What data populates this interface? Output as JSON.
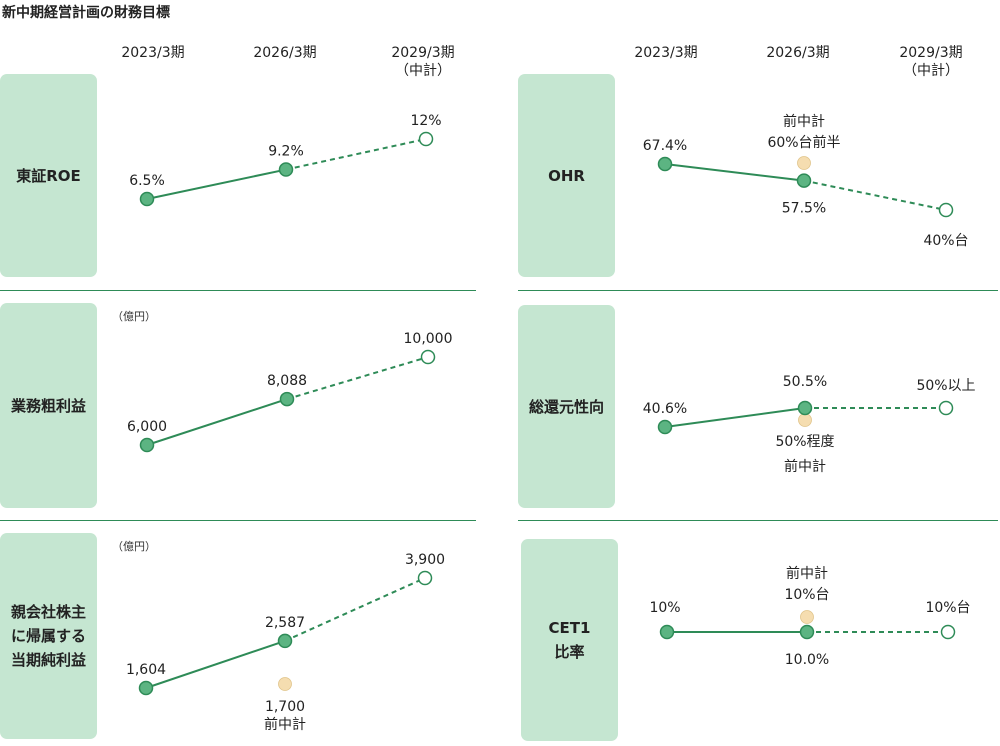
{
  "title": "新中期経営計画の財務目標",
  "columns": {
    "c1": "2023/3期",
    "c2": "2026/3期",
    "c3": "2029/3期",
    "c3_sub": "（中計）"
  },
  "colors": {
    "green": "#2e8b57",
    "point_fill": "#5cb482",
    "label_bg": "#c5e6d1",
    "prev_plan": "#f5ddb0"
  },
  "chart_data": [
    {
      "type": "line",
      "name": "東証ROE",
      "categories": [
        "2023/3期",
        "2026/3期",
        "2029/3期（中計）"
      ],
      "values": [
        6.5,
        9.2,
        12
      ],
      "labels": [
        "6.5%",
        "9.2%",
        "12%"
      ],
      "target_dashed": true
    },
    {
      "type": "line",
      "name": "業務粗利益",
      "unit": "（億円）",
      "categories": [
        "2023/3期",
        "2026/3期",
        "2029/3期（中計）"
      ],
      "values": [
        6000,
        8088,
        10000
      ],
      "labels": [
        "6,000",
        "8,088",
        "10,000"
      ],
      "target_dashed": true
    },
    {
      "type": "line",
      "name": "親会社株主に帰属する当期純利益",
      "unit": "（億円）",
      "categories": [
        "2023/3期",
        "2026/3期",
        "2029/3期（中計）"
      ],
      "values": [
        1604,
        2587,
        3900
      ],
      "labels": [
        "1,604",
        "2,587",
        "3,900"
      ],
      "target_dashed": true,
      "previous_plan": {
        "value": 1700,
        "label": "1,700",
        "note": "前中計"
      }
    },
    {
      "type": "line",
      "name": "OHR",
      "categories": [
        "2023/3期",
        "2026/3期",
        "2029/3期（中計）"
      ],
      "values": [
        67.4,
        57.5,
        40
      ],
      "labels": [
        "67.4%",
        "57.5%",
        "40%台"
      ],
      "target_dashed": true,
      "previous_plan": {
        "label": "60%台前半",
        "note": "前中計"
      }
    },
    {
      "type": "line",
      "name": "総還元性向",
      "categories": [
        "2023/3期",
        "2026/3期",
        "2029/3期（中計）"
      ],
      "values": [
        40.6,
        50.5,
        50
      ],
      "labels": [
        "40.6%",
        "50.5%",
        "50%以上"
      ],
      "target_dashed": true,
      "previous_plan": {
        "label": "50%程度",
        "note": "前中計"
      }
    },
    {
      "type": "line",
      "name": "CET1比率",
      "categories": [
        "2023/3期",
        "2026/3期",
        "2029/3期（中計）"
      ],
      "values": [
        10,
        10,
        10
      ],
      "labels": [
        "10%",
        "10.0%",
        "10%台"
      ],
      "target_dashed": true,
      "previous_plan": {
        "label": "10%台",
        "note": "前中計"
      }
    }
  ],
  "panels": {
    "roe": {
      "line1": "東証ROE"
    },
    "gross": {
      "line1": "業務粗利益",
      "unit": "（億円）"
    },
    "net": {
      "line1": "親会社株主",
      "line2": "に帰属する",
      "line3": "当期純利益",
      "unit": "（億円）"
    },
    "ohr": {
      "line1": "OHR"
    },
    "payout": {
      "line1": "総還元性向"
    },
    "cet1": {
      "line1": "CET1",
      "line2": "比率"
    }
  }
}
